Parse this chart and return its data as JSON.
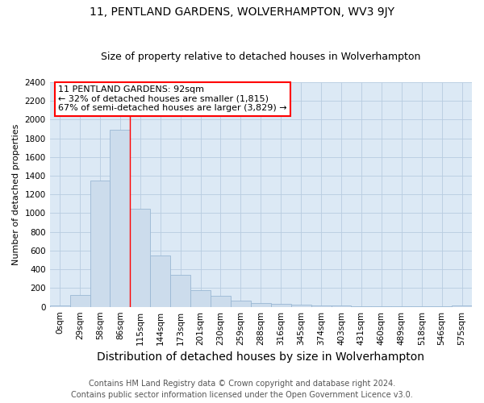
{
  "title": "11, PENTLAND GARDENS, WOLVERHAMPTON, WV3 9JY",
  "subtitle": "Size of property relative to detached houses in Wolverhampton",
  "xlabel": "Distribution of detached houses by size in Wolverhampton",
  "ylabel": "Number of detached properties",
  "footnote1": "Contains HM Land Registry data © Crown copyright and database right 2024.",
  "footnote2": "Contains public sector information licensed under the Open Government Licence v3.0.",
  "bin_labels": [
    "0sqm",
    "29sqm",
    "58sqm",
    "86sqm",
    "115sqm",
    "144sqm",
    "173sqm",
    "201sqm",
    "230sqm",
    "259sqm",
    "288sqm",
    "316sqm",
    "345sqm",
    "374sqm",
    "403sqm",
    "431sqm",
    "460sqm",
    "489sqm",
    "518sqm",
    "546sqm",
    "575sqm"
  ],
  "bar_values": [
    18,
    130,
    1345,
    1890,
    1045,
    550,
    340,
    175,
    115,
    65,
    38,
    30,
    22,
    18,
    12,
    8,
    5,
    5,
    4,
    4,
    18
  ],
  "bar_color": "#ccdcec",
  "bar_edge_color": "#9ab8d4",
  "red_line_bin_index": 3,
  "annotation_text": "11 PENTLAND GARDENS: 92sqm\n← 32% of detached houses are smaller (1,815)\n67% of semi-detached houses are larger (3,829) →",
  "annotation_box_facecolor": "white",
  "annotation_box_edgecolor": "red",
  "ylim": [
    0,
    2400
  ],
  "ytick_interval": 200,
  "figure_facecolor": "white",
  "axes_facecolor": "#dce9f5",
  "grid_color": "#b8cce0",
  "title_fontsize": 10,
  "subtitle_fontsize": 9,
  "ylabel_fontsize": 8,
  "xlabel_fontsize": 10,
  "tick_fontsize": 7.5,
  "annotation_fontsize": 8,
  "footnote_fontsize": 7
}
